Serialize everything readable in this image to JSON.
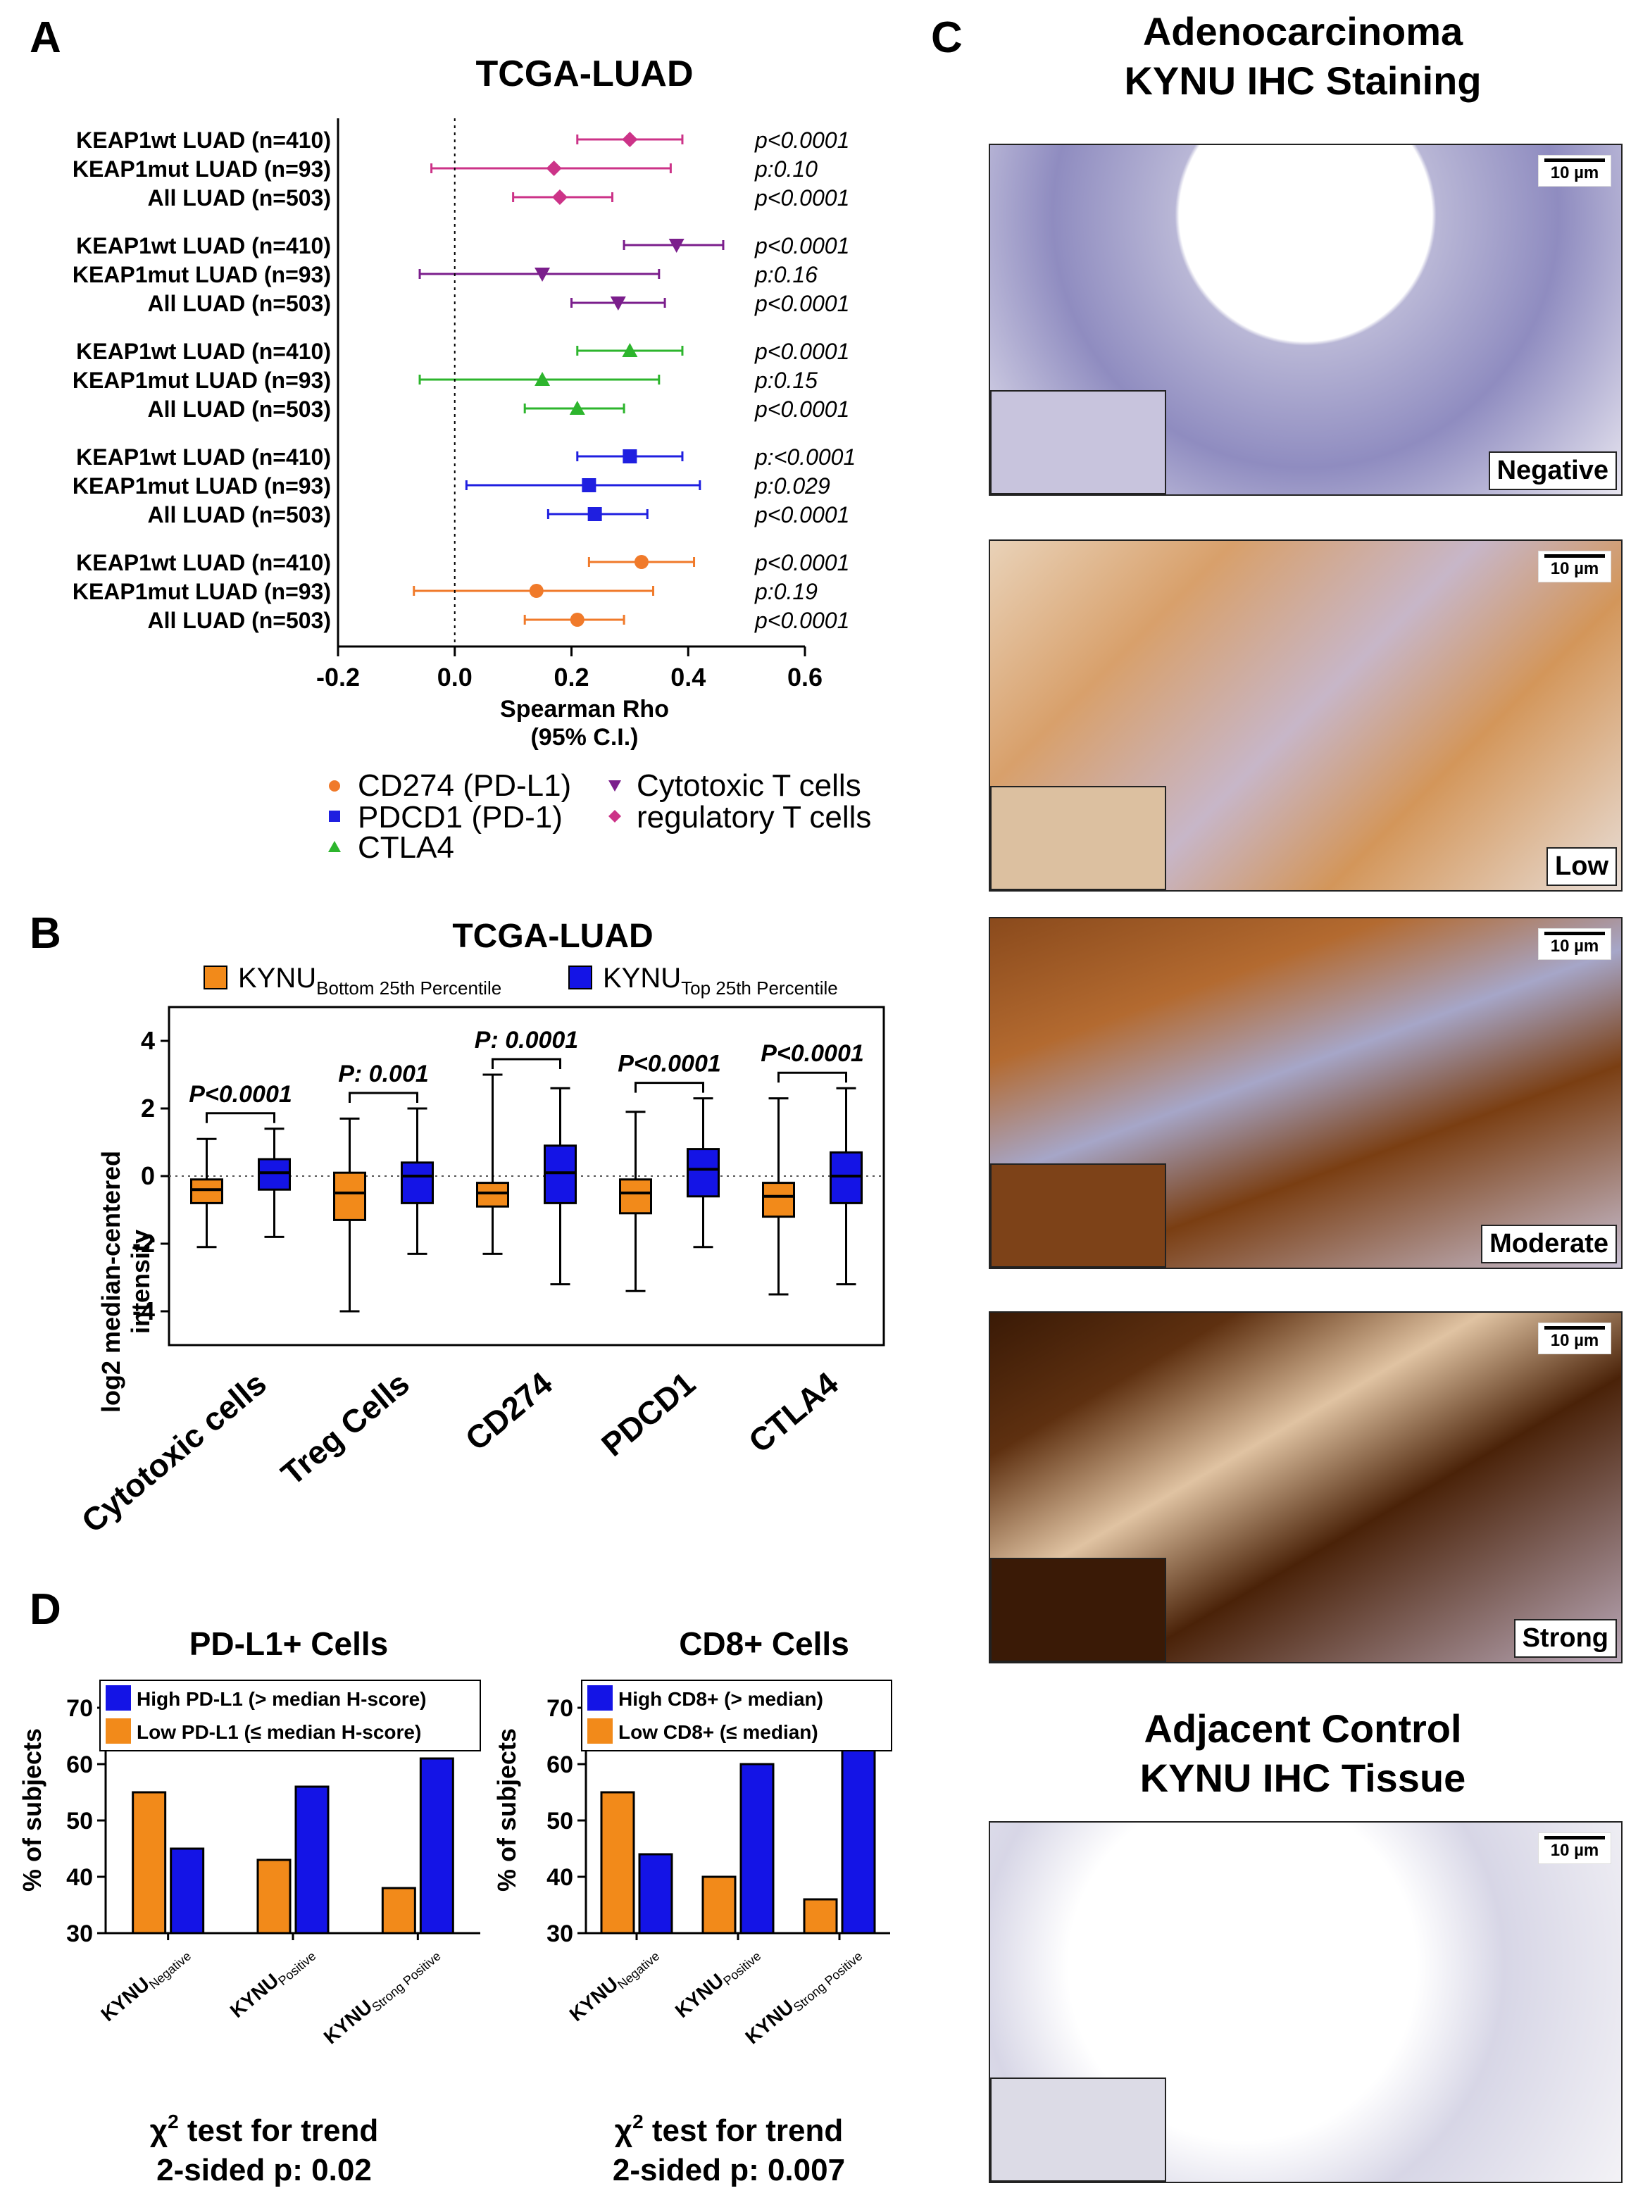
{
  "panels": {
    "A": "A",
    "B": "B",
    "C": "C",
    "D": "D"
  },
  "panelA": {
    "title": "TCGA-LUAD",
    "xlabel_line1": "Spearman Rho",
    "xlabel_line2": "(95% C.I.)",
    "legend": {
      "cd274": "CD274 (PD-L1)",
      "pdcd1": "PDCD1 (PD-1)",
      "ctla4": "CTLA4",
      "cyto": "Cytotoxic T cells",
      "treg": "regulatory T cells"
    }
  },
  "panelB": {
    "title": "TCGA-LUAD",
    "ylabel_line1": "log2 median-centered",
    "ylabel_line2": "intensity",
    "legend_bottom_main": "KYNU",
    "legend_bottom_sub": "Bottom 25th Percentile",
    "legend_top_main": "KYNU",
    "legend_top_sub": "Top 25th Percentile"
  },
  "panelC": {
    "title_line1": "Adenocarcinoma",
    "title_line2": "KYNU IHC Staining",
    "control_line1": "Adjacent Control",
    "control_line2": "KYNU IHC Tissue",
    "scale": "10 µm",
    "labels": [
      "Negative",
      "Low",
      "Moderate",
      "Strong"
    ]
  },
  "panelD": {
    "left_title": "PD-L1+ Cells",
    "right_title": "CD8+ Cells",
    "ylabel": "% of subjects",
    "left_legend_high": "High PD-L1 (> median H-score)",
    "left_legend_low": "Low PD-L1 (≤ median H-score)",
    "right_legend_high": "High CD8+ (> median)",
    "right_legend_low": "Low CD8+ (≤ median)",
    "cat_main": "KYNU",
    "left_test_line1": "χ",
    "left_test_line1b": "2",
    "left_test_line1c": " test for trend",
    "left_test_line2": "2-sided p: 0.02",
    "right_test_line1": "χ",
    "right_test_line1b": "2",
    "right_test_line1c": " test for trend",
    "right_test_line2": "2-sided p: 0.007"
  },
  "chart_data": [
    {
      "type": "forest",
      "title": "TCGA-LUAD",
      "xlabel": "Spearman Rho (95% C.I.)",
      "xlim": [
        -0.2,
        0.6
      ],
      "xticks": [
        "-0.2",
        "0.0",
        "0.2",
        "0.4",
        "0.6"
      ],
      "reference_line": 0,
      "groups": [
        {
          "series": "regulatory T cells",
          "color": "#cc3388",
          "marker": "diamond",
          "rows": [
            {
              "label": "KEAP1wt LUAD (n=410)",
              "rho": 0.3,
              "lo": 0.21,
              "hi": 0.39,
              "p": "p<0.0001"
            },
            {
              "label": "KEAP1mut LUAD (n=93)",
              "rho": 0.17,
              "lo": -0.04,
              "hi": 0.37,
              "p": "p:0.10"
            },
            {
              "label": "All LUAD (n=503)",
              "rho": 0.18,
              "lo": 0.1,
              "hi": 0.27,
              "p": "p<0.0001"
            }
          ]
        },
        {
          "series": "Cytotoxic T cells",
          "color": "#7b1e8c",
          "marker": "triangle-down",
          "rows": [
            {
              "label": "KEAP1wt LUAD (n=410)",
              "rho": 0.38,
              "lo": 0.29,
              "hi": 0.46,
              "p": "p<0.0001"
            },
            {
              "label": "KEAP1mut LUAD (n=93)",
              "rho": 0.15,
              "lo": -0.06,
              "hi": 0.35,
              "p": "p:0.16"
            },
            {
              "label": "All LUAD (n=503)",
              "rho": 0.28,
              "lo": 0.2,
              "hi": 0.36,
              "p": "p<0.0001"
            }
          ]
        },
        {
          "series": "CTLA4",
          "color": "#2db52d",
          "marker": "triangle-up",
          "rows": [
            {
              "label": "KEAP1wt LUAD (n=410)",
              "rho": 0.3,
              "lo": 0.21,
              "hi": 0.39,
              "p": "p<0.0001"
            },
            {
              "label": "KEAP1mut LUAD (n=93)",
              "rho": 0.15,
              "lo": -0.06,
              "hi": 0.35,
              "p": "p:0.15"
            },
            {
              "label": "All LUAD (n=503)",
              "rho": 0.21,
              "lo": 0.12,
              "hi": 0.29,
              "p": "p<0.0001"
            }
          ]
        },
        {
          "series": "PDCD1 (PD-1)",
          "color": "#1f1fe0",
          "marker": "square",
          "rows": [
            {
              "label": "KEAP1wt LUAD (n=410)",
              "rho": 0.3,
              "lo": 0.21,
              "hi": 0.39,
              "p": "p:<0.0001"
            },
            {
              "label": "KEAP1mut LUAD (n=93)",
              "rho": 0.23,
              "lo": 0.02,
              "hi": 0.42,
              "p": "p:0.029"
            },
            {
              "label": "All LUAD (n=503)",
              "rho": 0.24,
              "lo": 0.16,
              "hi": 0.33,
              "p": "p<0.0001"
            }
          ]
        },
        {
          "series": "CD274 (PD-L1)",
          "color": "#f07a2a",
          "marker": "circle",
          "rows": [
            {
              "label": "KEAP1wt LUAD (n=410)",
              "rho": 0.32,
              "lo": 0.23,
              "hi": 0.41,
              "p": "p<0.0001"
            },
            {
              "label": "KEAP1mut LUAD (n=93)",
              "rho": 0.14,
              "lo": -0.07,
              "hi": 0.34,
              "p": "p:0.19"
            },
            {
              "label": "All LUAD (n=503)",
              "rho": 0.21,
              "lo": 0.12,
              "hi": 0.29,
              "p": "p<0.0001"
            }
          ]
        }
      ]
    },
    {
      "type": "box",
      "title": "TCGA-LUAD",
      "ylabel": "log2 median-centered intensity",
      "ylim": [
        -5,
        5
      ],
      "yticks": [
        "4",
        "2",
        "0",
        "-2",
        "-4"
      ],
      "categories": [
        "Cytotoxic cells",
        "Treg Cells",
        "CD274",
        "PDCD1",
        "CTLA4"
      ],
      "pvalues": [
        "P<0.0001",
        "P: 0.001",
        "P: 0.0001",
        "P<0.0001",
        "P<0.0001"
      ],
      "series": [
        {
          "name": "KYNU Bottom 25th Percentile",
          "color": "#f28a1a",
          "boxes": [
            {
              "min": -2.1,
              "q1": -0.8,
              "median": -0.4,
              "q3": -0.1,
              "max": 1.1
            },
            {
              "min": -4.0,
              "q1": -1.3,
              "median": -0.5,
              "q3": 0.1,
              "max": 1.7
            },
            {
              "min": -2.3,
              "q1": -0.9,
              "median": -0.5,
              "q3": -0.2,
              "max": 3.0
            },
            {
              "min": -3.4,
              "q1": -1.1,
              "median": -0.5,
              "q3": -0.1,
              "max": 1.9
            },
            {
              "min": -3.5,
              "q1": -1.2,
              "median": -0.6,
              "q3": -0.2,
              "max": 2.3
            }
          ]
        },
        {
          "name": "KYNU Top 25th Percentile",
          "color": "#1414e6",
          "boxes": [
            {
              "min": -1.8,
              "q1": -0.4,
              "median": 0.1,
              "q3": 0.5,
              "max": 1.4
            },
            {
              "min": -2.3,
              "q1": -0.8,
              "median": 0.0,
              "q3": 0.4,
              "max": 2.0
            },
            {
              "min": -3.2,
              "q1": -0.8,
              "median": 0.1,
              "q3": 0.9,
              "max": 2.6
            },
            {
              "min": -2.1,
              "q1": -0.6,
              "median": 0.2,
              "q3": 0.8,
              "max": 2.3
            },
            {
              "min": -3.2,
              "q1": -0.8,
              "median": 0.0,
              "q3": 0.7,
              "max": 2.6
            }
          ]
        }
      ]
    },
    {
      "type": "bar",
      "title": "PD-L1+ Cells",
      "ylabel": "% of subjects",
      "ylim": [
        30,
        70
      ],
      "yticks": [
        "70",
        "60",
        "50",
        "40",
        "30"
      ],
      "categories": [
        "Negative",
        "Positive",
        "Strong Positive"
      ],
      "series": [
        {
          "name": "Low PD-L1 (≤ median H-score)",
          "color": "#f28a1a",
          "values": [
            55,
            43,
            38
          ]
        },
        {
          "name": "High PD-L1 (> median H-score)",
          "color": "#1414e6",
          "values": [
            45,
            56,
            61
          ]
        }
      ]
    },
    {
      "type": "bar",
      "title": "CD8+ Cells",
      "ylabel": "% of subjects",
      "ylim": [
        30,
        70
      ],
      "yticks": [
        "70",
        "60",
        "50",
        "40",
        "30"
      ],
      "categories": [
        "Negative",
        "Positive",
        "Strong Positive"
      ],
      "series": [
        {
          "name": "Low CD8+ (≤ median)",
          "color": "#f28a1a",
          "values": [
            55,
            40,
            36
          ]
        },
        {
          "name": "High CD8+ (> median)",
          "color": "#1414e6",
          "values": [
            44,
            60,
            63
          ]
        }
      ]
    }
  ]
}
